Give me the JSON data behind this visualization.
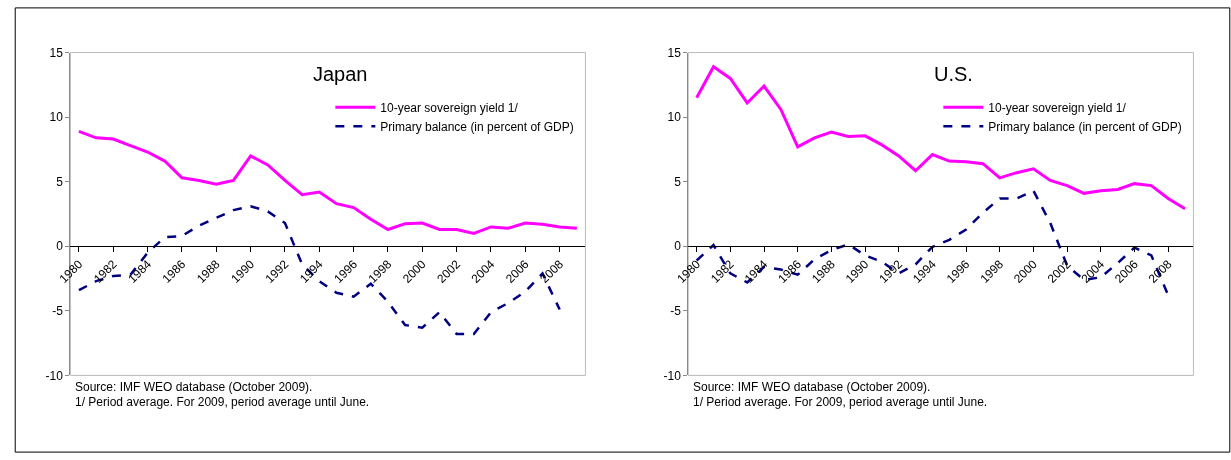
{
  "chart_data": [
    {
      "type": "line",
      "title": "Japan",
      "categories": [
        "1980",
        null,
        "1982",
        null,
        "1984",
        null,
        "1986",
        null,
        "1988",
        null,
        "1990",
        null,
        "1992",
        null,
        "1994",
        null,
        "1996",
        null,
        "1998",
        null,
        "2000",
        null,
        "2002",
        null,
        "2004",
        null,
        "2006",
        null,
        "2008",
        null
      ],
      "series": [
        {
          "name": "10-year sovereign yield 1/",
          "color": "#ff00ff",
          "line_style": "solid",
          "values": [
            8.9,
            8.4,
            8.3,
            7.8,
            7.3,
            6.6,
            5.3,
            5.1,
            4.8,
            5.1,
            7.0,
            6.3,
            5.1,
            4.0,
            4.2,
            3.3,
            3.0,
            2.1,
            1.3,
            1.75,
            1.8,
            1.3,
            1.3,
            1.0,
            1.5,
            1.4,
            1.8,
            1.7,
            1.5,
            1.4
          ]
        },
        {
          "name": "Primary balance (in percent of GDP)",
          "color": "#000080",
          "line_style": "dashed",
          "values": [
            -3.4,
            -2.7,
            -2.3,
            -2.2,
            -0.5,
            0.7,
            0.8,
            1.6,
            2.2,
            2.8,
            3.1,
            2.7,
            1.8,
            -1.4,
            -2.7,
            -3.6,
            -3.9,
            -2.9,
            -4.3,
            -6.1,
            -6.3,
            -5.1,
            -6.8,
            -6.8,
            -5.1,
            -4.4,
            -3.5,
            -2.1,
            -4.9,
            null
          ]
        }
      ],
      "ylim": [
        -10,
        15
      ],
      "yticks": [
        -10,
        -5,
        0,
        5,
        10,
        15
      ],
      "grid": false,
      "legend": "top right",
      "marker": "none",
      "annotations": [
        "Source: IMF WEO database (October 2009).",
        "1/ Period average. For 2009, period average until June."
      ]
    },
    {
      "type": "line",
      "title": "U.S.",
      "categories": [
        "1980",
        null,
        "1982",
        null,
        "1984",
        null,
        "1986",
        null,
        "1988",
        null,
        "1990",
        null,
        "1992",
        null,
        "1994",
        null,
        "1996",
        null,
        "1998",
        null,
        "2000",
        null,
        "2002",
        null,
        "2004",
        null,
        "2006",
        null,
        "2008",
        null
      ],
      "series": [
        {
          "name": "10-year sovereign yield 1/",
          "color": "#ff00ff",
          "line_style": "solid",
          "values": [
            11.5,
            13.9,
            13.0,
            11.1,
            12.4,
            10.6,
            7.7,
            8.4,
            8.85,
            8.5,
            8.55,
            7.85,
            7.0,
            5.85,
            7.1,
            6.6,
            6.55,
            6.4,
            5.3,
            5.7,
            6.0,
            5.1,
            4.7,
            4.1,
            4.3,
            4.4,
            4.85,
            4.7,
            3.7,
            2.9
          ]
        },
        {
          "name": "Primary balance (in percent of GDP)",
          "color": "#000080",
          "line_style": "dashed",
          "values": [
            -1.1,
            0.1,
            -2.1,
            -2.8,
            -1.6,
            -1.8,
            -2.2,
            -1.0,
            -0.3,
            0.15,
            -0.7,
            -1.2,
            -2.1,
            -1.4,
            -0.05,
            0.5,
            1.3,
            2.6,
            3.7,
            3.7,
            4.3,
            1.8,
            -1.5,
            -2.6,
            -2.4,
            -1.3,
            -0.1,
            -0.7,
            -3.8,
            null
          ]
        }
      ],
      "ylim": [
        -10,
        15
      ],
      "yticks": [
        -10,
        -5,
        0,
        5,
        10,
        15
      ],
      "grid": false,
      "legend": "top right",
      "marker": "none",
      "annotations": [
        "Source: IMF WEO database (October 2009).",
        "1/ Period average. For 2009, period average until June."
      ]
    }
  ]
}
